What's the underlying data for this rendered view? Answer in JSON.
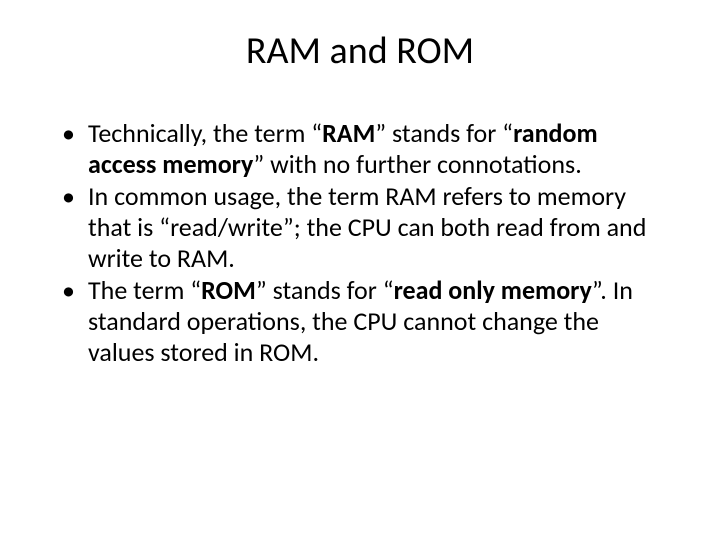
{
  "slide": {
    "title": "RAM and ROM",
    "bullets": [
      {
        "segments": [
          {
            "text": "Technically, the term “",
            "bold": false
          },
          {
            "text": "RAM",
            "bold": true
          },
          {
            "text": "” stands for “",
            "bold": false
          },
          {
            "text": "random access memory",
            "bold": true
          },
          {
            "text": "” with no further connotations.",
            "bold": false
          }
        ]
      },
      {
        "segments": [
          {
            "text": "In common usage, the term RAM refers to memory that is “read/write”; the CPU can both read from and write to RAM.",
            "bold": false
          }
        ]
      },
      {
        "segments": [
          {
            "text": "The term “",
            "bold": false
          },
          {
            "text": "ROM",
            "bold": true
          },
          {
            "text": "” stands for “",
            "bold": false
          },
          {
            "text": "read only memory",
            "bold": true
          },
          {
            "text": "”.  In standard operations, the CPU cannot change the values stored in ROM.",
            "bold": false
          }
        ]
      }
    ]
  },
  "style": {
    "background_color": "#ffffff",
    "text_color": "#000000",
    "title_fontsize": 38,
    "body_fontsize": 26,
    "font_family": "Calibri"
  }
}
